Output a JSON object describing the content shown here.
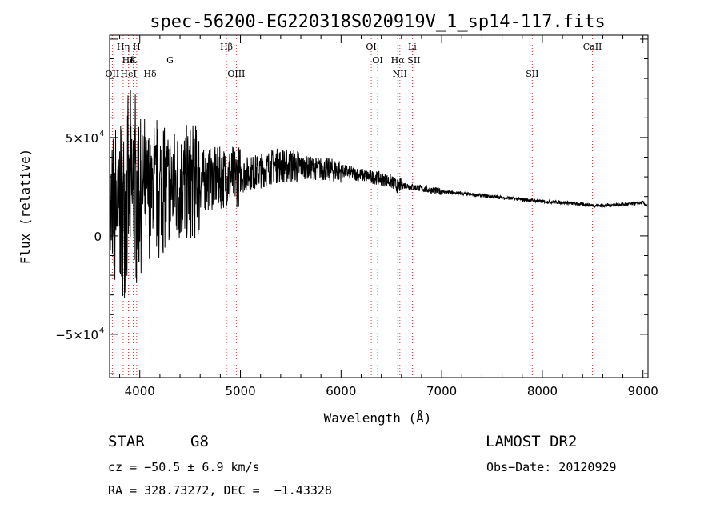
{
  "chart_data": {
    "type": "line",
    "title": "spec-56200-EG220318S020919V_1_sp14-117.fits",
    "xlabel": "Wavelength (Å)",
    "ylabel": "Flux (relative)",
    "xlim": [
      3700,
      9050
    ],
    "ylim": [
      -72000,
      102000
    ],
    "x_ticks": [
      4000,
      5000,
      6000,
      7000,
      8000,
      9000
    ],
    "y_ticks": [
      {
        "value": -50000,
        "label": "−5×10",
        "exp": "4"
      },
      {
        "value": 0,
        "label": "0",
        "exp": ""
      },
      {
        "value": 50000,
        "label": "5×10",
        "exp": "4"
      }
    ],
    "grid": false,
    "series": [
      {
        "x": [
          3700,
          3750,
          3800,
          3850,
          3900,
          3950,
          4000,
          4100,
          4200,
          4300,
          4400,
          4500,
          4600,
          4700,
          4800,
          4900,
          5000,
          5100,
          5200,
          5300,
          5400,
          5500,
          5600,
          5700,
          5800,
          5900,
          6000,
          6100,
          6200,
          6300,
          6400,
          6500,
          6563,
          6600,
          6700,
          6800,
          7000,
          7200,
          7400,
          7600,
          7800,
          8000,
          8200,
          8400,
          8500,
          8600,
          8800,
          8950,
          9000,
          9050
        ],
        "y": [
          5000,
          10000,
          15000,
          18000,
          20000,
          22000,
          22000,
          23000,
          24000,
          25000,
          26000,
          27000,
          28000,
          29000,
          29500,
          30000,
          30500,
          32000,
          33000,
          35000,
          36000,
          35500,
          35000,
          34500,
          34000,
          33500,
          33000,
          32000,
          31000,
          30000,
          29000,
          27500,
          25000,
          26000,
          25000,
          24000,
          22500,
          21500,
          20500,
          19500,
          18500,
          17500,
          17000,
          16000,
          15500,
          15500,
          16000,
          16500,
          17000,
          15000
        ]
      }
    ],
    "spectral_lines": [
      {
        "label": "Hη",
        "wave": 3835,
        "row": 0
      },
      {
        "label": "H",
        "wave": 3969,
        "row": 0
      },
      {
        "label": "Hβ",
        "wave": 4861,
        "row": 0
      },
      {
        "label": "OI",
        "wave": 6300,
        "row": 0
      },
      {
        "label": "Li",
        "wave": 6708,
        "row": 0
      },
      {
        "label": "CaII",
        "wave": 8498,
        "row": 0
      },
      {
        "label": "Hδ",
        "wave": 3889,
        "row": 1
      },
      {
        "label": "K",
        "wave": 3934,
        "row": 1
      },
      {
        "label": "G",
        "wave": 4300,
        "row": 1
      },
      {
        "label": "OI",
        "wave": 6364,
        "row": 1
      },
      {
        "label": "Hα",
        "wave": 6563,
        "row": 1
      },
      {
        "label": "SII",
        "wave": 6724,
        "row": 1
      },
      {
        "label": "OII",
        "wave": 3727,
        "row": 2
      },
      {
        "label": "HeI",
        "wave": 3888,
        "row": 2
      },
      {
        "label": "Hδ",
        "wave": 4102,
        "row": 2
      },
      {
        "label": "OIII",
        "wave": 4959,
        "row": 2
      },
      {
        "label": "NII",
        "wave": 6584,
        "row": 2
      },
      {
        "label": "SII",
        "wave": 7900,
        "row": 2
      }
    ]
  },
  "info": {
    "class": "STAR",
    "subclass": "G8",
    "survey": "LAMOST DR2",
    "cz": "cz = −50.5 ± 6.9 km/s",
    "obs_date": "Obs−Date: 20120929",
    "radec": "RA = 328.73272, DEC =  −1.43328"
  },
  "colors": {
    "line": "#000000",
    "marker": "#e03030",
    "axis": "#000000"
  }
}
